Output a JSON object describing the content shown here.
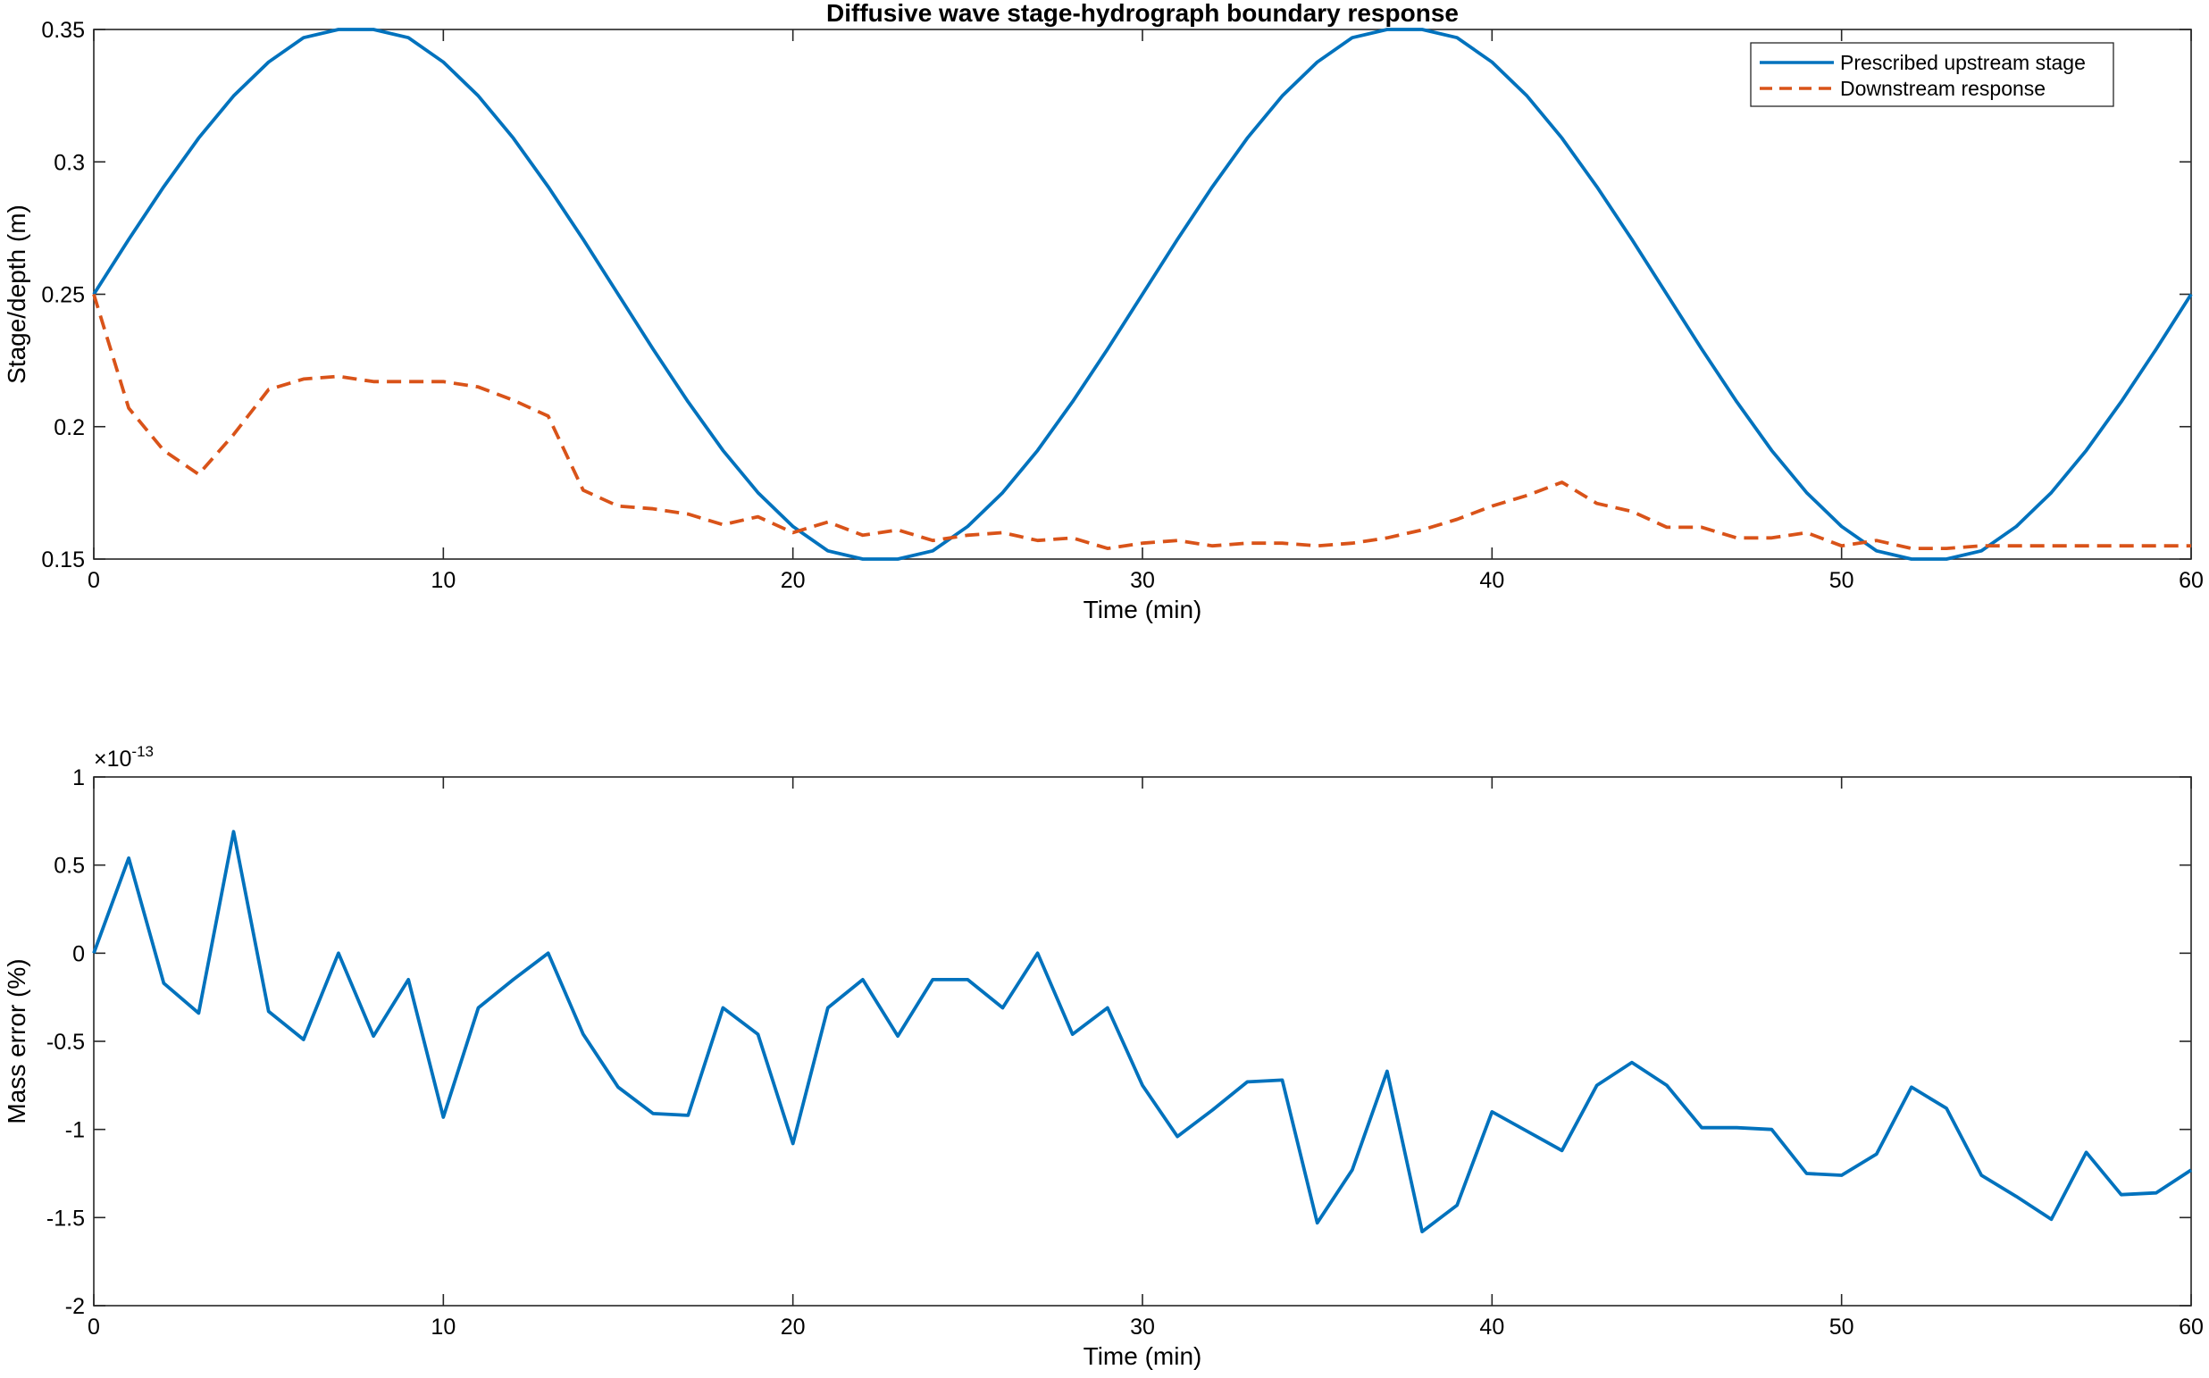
{
  "colors": {
    "series_blue": "#0072BD",
    "series_orange": "#D95319",
    "axes": "#262626",
    "background": "#ffffff"
  },
  "chart_data": [
    {
      "type": "line",
      "title": "Diffusive wave stage-hydrograph boundary response",
      "xlabel": "Time (min)",
      "ylabel": "Stage/depth (m)",
      "xlim": [
        0,
        60
      ],
      "ylim": [
        0.15,
        0.35
      ],
      "xticks": [
        0,
        10,
        20,
        30,
        40,
        50,
        60
      ],
      "xtick_labels": [
        "0",
        "10",
        "20",
        "30",
        "40",
        "50",
        "60"
      ],
      "yticks": [
        0.15,
        0.2,
        0.25,
        0.3,
        0.35
      ],
      "ytick_labels": [
        "0.15",
        "0.2",
        "0.25",
        "0.3",
        "0.35"
      ],
      "grid": false,
      "legend_placement": "top-right",
      "series": [
        {
          "name": "Prescribed upstream stage",
          "style": "solid",
          "color": "#0072BD",
          "x": [
            0,
            1,
            2,
            3,
            4,
            5,
            6,
            7,
            8,
            9,
            10,
            11,
            12,
            13,
            14,
            15,
            16,
            17,
            18,
            19,
            20,
            21,
            22,
            23,
            24,
            25,
            26,
            27,
            28,
            29,
            30,
            31,
            32,
            33,
            34,
            35,
            36,
            37,
            38,
            39,
            40,
            41,
            42,
            43,
            44,
            45,
            46,
            47,
            48,
            49,
            50,
            51,
            52,
            53,
            54,
            55,
            56,
            57,
            58,
            59,
            60
          ],
          "y": [
            0.25,
            0.2707,
            0.2906,
            0.309,
            0.3249,
            0.3377,
            0.3469,
            0.35,
            0.35,
            0.3469,
            0.3377,
            0.3249,
            0.309,
            0.2906,
            0.2707,
            0.25,
            0.2293,
            0.2094,
            0.191,
            0.1751,
            0.1623,
            0.1531,
            0.15,
            0.15,
            0.1531,
            0.1623,
            0.1751,
            0.191,
            0.2094,
            0.2293,
            0.25,
            0.2707,
            0.2906,
            0.309,
            0.3249,
            0.3377,
            0.3469,
            0.35,
            0.35,
            0.3469,
            0.3377,
            0.3249,
            0.309,
            0.2906,
            0.2707,
            0.25,
            0.2293,
            0.2094,
            0.191,
            0.1751,
            0.1623,
            0.1531,
            0.15,
            0.15,
            0.1531,
            0.1623,
            0.1751,
            0.191,
            0.2094,
            0.2293,
            0.25
          ]
        },
        {
          "name": "Downstream response",
          "style": "dashed",
          "color": "#D95319",
          "x": [
            0,
            1,
            2,
            3,
            4,
            5,
            6,
            7,
            8,
            9,
            10,
            11,
            12,
            13,
            14,
            15,
            16,
            17,
            18,
            19,
            20,
            21,
            22,
            23,
            24,
            25,
            26,
            27,
            28,
            29,
            30,
            31,
            32,
            33,
            34,
            35,
            36,
            37,
            38,
            39,
            40,
            41,
            42,
            43,
            44,
            45,
            46,
            47,
            48,
            49,
            50,
            51,
            52,
            53,
            54,
            55,
            56,
            57,
            58,
            59,
            60
          ],
          "y": [
            0.25,
            0.207,
            0.191,
            0.182,
            0.197,
            0.214,
            0.218,
            0.219,
            0.217,
            0.217,
            0.217,
            0.215,
            0.21,
            0.204,
            0.176,
            0.17,
            0.169,
            0.167,
            0.163,
            0.166,
            0.16,
            0.164,
            0.159,
            0.161,
            0.157,
            0.159,
            0.16,
            0.157,
            0.158,
            0.154,
            0.156,
            0.157,
            0.155,
            0.156,
            0.156,
            0.155,
            0.156,
            0.158,
            0.161,
            0.165,
            0.17,
            0.174,
            0.179,
            0.171,
            0.168,
            0.162,
            0.162,
            0.158,
            0.158,
            0.16,
            0.155,
            0.157,
            0.154,
            0.154,
            0.155,
            0.155,
            0.155,
            0.155,
            0.155,
            0.155,
            0.155
          ]
        }
      ]
    },
    {
      "type": "line",
      "title": "",
      "xlabel": "Time (min)",
      "ylabel": "Mass error (%)",
      "exponent_label": "×10",
      "exponent_power": "-13",
      "xlim": [
        0,
        60
      ],
      "ylim": [
        -2,
        1
      ],
      "xticks": [
        0,
        10,
        20,
        30,
        40,
        50,
        60
      ],
      "xtick_labels": [
        "0",
        "10",
        "20",
        "30",
        "40",
        "50",
        "60"
      ],
      "yticks": [
        -2,
        -1.5,
        -1,
        -0.5,
        0,
        0.5,
        1
      ],
      "ytick_labels": [
        "-2",
        "-1.5",
        "-1",
        "-0.5",
        "0",
        "0.5",
        "1"
      ],
      "grid": false,
      "series": [
        {
          "style": "solid",
          "color": "#0072BD",
          "x": [
            0,
            1,
            2,
            3,
            4,
            5,
            6,
            7,
            8,
            9,
            10,
            11,
            12,
            13,
            14,
            15,
            16,
            17,
            18,
            19,
            20,
            21,
            22,
            23,
            24,
            25,
            26,
            27,
            28,
            29,
            30,
            31,
            32,
            33,
            34,
            35,
            36,
            37,
            38,
            39,
            40,
            41,
            42,
            43,
            44,
            45,
            46,
            47,
            48,
            49,
            50,
            51,
            52,
            53,
            54,
            55,
            56,
            57,
            58,
            59,
            60
          ],
          "y": [
            0,
            0.54,
            -0.17,
            -0.34,
            0.69,
            -0.33,
            -0.49,
            0,
            -0.47,
            -0.15,
            -0.93,
            -0.31,
            -0.15,
            0,
            -0.46,
            -0.76,
            -0.91,
            -0.92,
            -0.31,
            -0.46,
            -1.08,
            -0.31,
            -0.15,
            -0.47,
            -0.15,
            -0.15,
            -0.31,
            0,
            -0.46,
            -0.31,
            -0.75,
            -1.04,
            -0.89,
            -0.73,
            -0.72,
            -1.53,
            -1.23,
            -0.67,
            -1.58,
            -1.43,
            -0.9,
            -1.01,
            -1.12,
            -0.75,
            -0.62,
            -0.75,
            -0.99,
            -0.99,
            -1.0,
            -1.25,
            -1.26,
            -1.14,
            -0.76,
            -0.88,
            -1.26,
            -1.38,
            -1.51,
            -1.13,
            -1.37,
            -1.36,
            -1.23
          ]
        }
      ]
    }
  ]
}
